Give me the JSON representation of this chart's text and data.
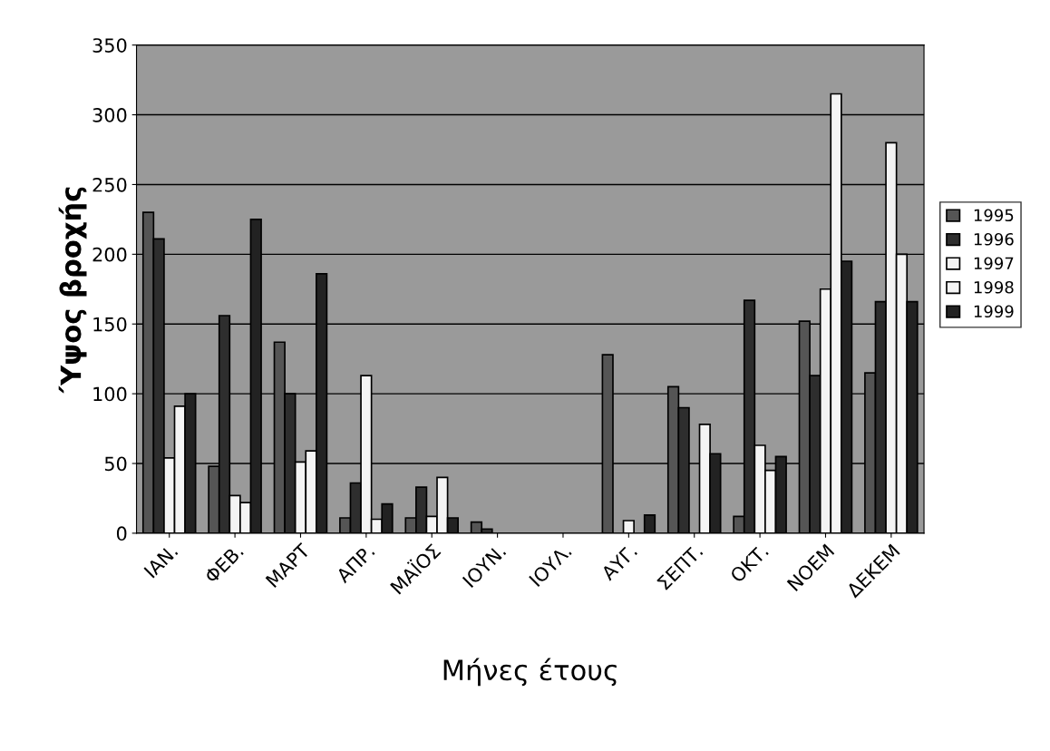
{
  "chart_data": {
    "type": "bar",
    "xlabel": "Μήνες έτους",
    "ylabel": "Ύψος βροχής",
    "categories": [
      "ΙΑΝ.",
      "ΦΕΒ.",
      "ΜΑΡΤ",
      "ΑΠΡ.",
      "ΜΑΪΟΣ",
      "ΙΟΥΝ.",
      "ΙΟΥΛ.",
      "ΑΥΓ.",
      "ΣΕΠΤ.",
      "ΟΚΤ.",
      "ΝΟΕΜ",
      "ΔΕΚΕΜ"
    ],
    "series": [
      {
        "name": "1995",
        "color": "#555555",
        "values": [
          230,
          48,
          137,
          11,
          11,
          8,
          0,
          128,
          105,
          12,
          152,
          115
        ]
      },
      {
        "name": "1996",
        "color": "#2e2e2e",
        "values": [
          211,
          156,
          100,
          36,
          33,
          3,
          0,
          0,
          90,
          167,
          113,
          166
        ]
      },
      {
        "name": "1997",
        "color": "#f4f4f4",
        "values": [
          54,
          27,
          51,
          113,
          12,
          0,
          0,
          9,
          0,
          63,
          175,
          280
        ]
      },
      {
        "name": "1998",
        "color": "#f4f4f4",
        "values": [
          91,
          22,
          59,
          10,
          40,
          0,
          0,
          0,
          78,
          45,
          315,
          200
        ]
      },
      {
        "name": "1999",
        "color": "#222222",
        "values": [
          100,
          225,
          186,
          21,
          11,
          0,
          0,
          13,
          57,
          55,
          195,
          166
        ]
      }
    ],
    "ylim": [
      0,
      350
    ],
    "yticks": [
      0,
      50,
      100,
      150,
      200,
      250,
      300,
      350
    ],
    "grid": "y",
    "legend": "right"
  }
}
